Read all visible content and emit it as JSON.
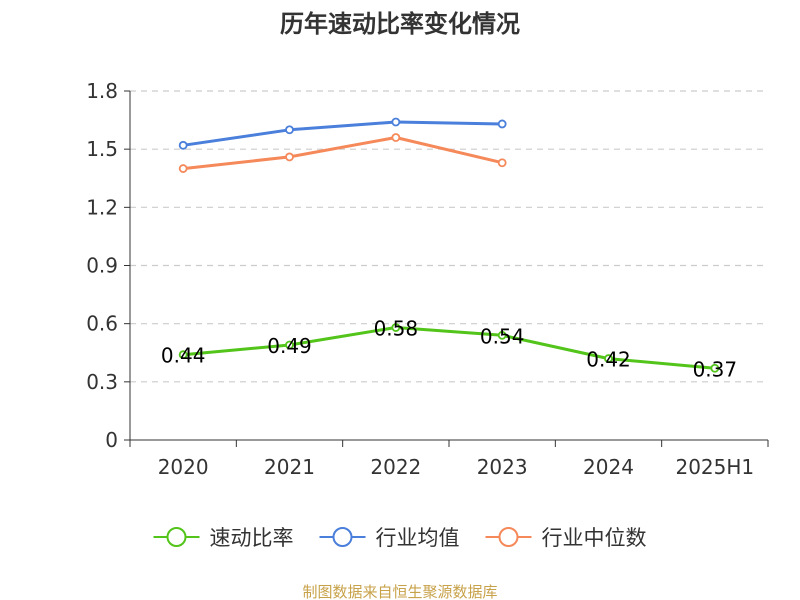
{
  "chart_data": {
    "type": "line",
    "title": "历年速动比率变化情况",
    "categories": [
      "2020",
      "2021",
      "2022",
      "2023",
      "2024",
      "2025H1"
    ],
    "yticks": [
      "0",
      "0.3",
      "0.6",
      "0.9",
      "1.2",
      "1.5",
      "1.8"
    ],
    "ylim": [
      0,
      1.8
    ],
    "grid": true,
    "legend_position": "bottom",
    "series": [
      {
        "name": "速动比率",
        "color": "#52c41a",
        "values": [
          0.44,
          0.49,
          0.58,
          0.54,
          0.42,
          0.37
        ],
        "labels": [
          "0.44",
          "0.49",
          "0.58",
          "0.54",
          "0.42",
          "0.37"
        ]
      },
      {
        "name": "行业均值",
        "color": "#4a7fdb",
        "values": [
          1.52,
          1.6,
          1.64,
          1.63,
          null,
          null
        ]
      },
      {
        "name": "行业中位数",
        "color": "#f5895a",
        "values": [
          1.4,
          1.46,
          1.56,
          1.43,
          null,
          null
        ]
      }
    ]
  },
  "source": "制图数据来自恒生聚源数据库"
}
